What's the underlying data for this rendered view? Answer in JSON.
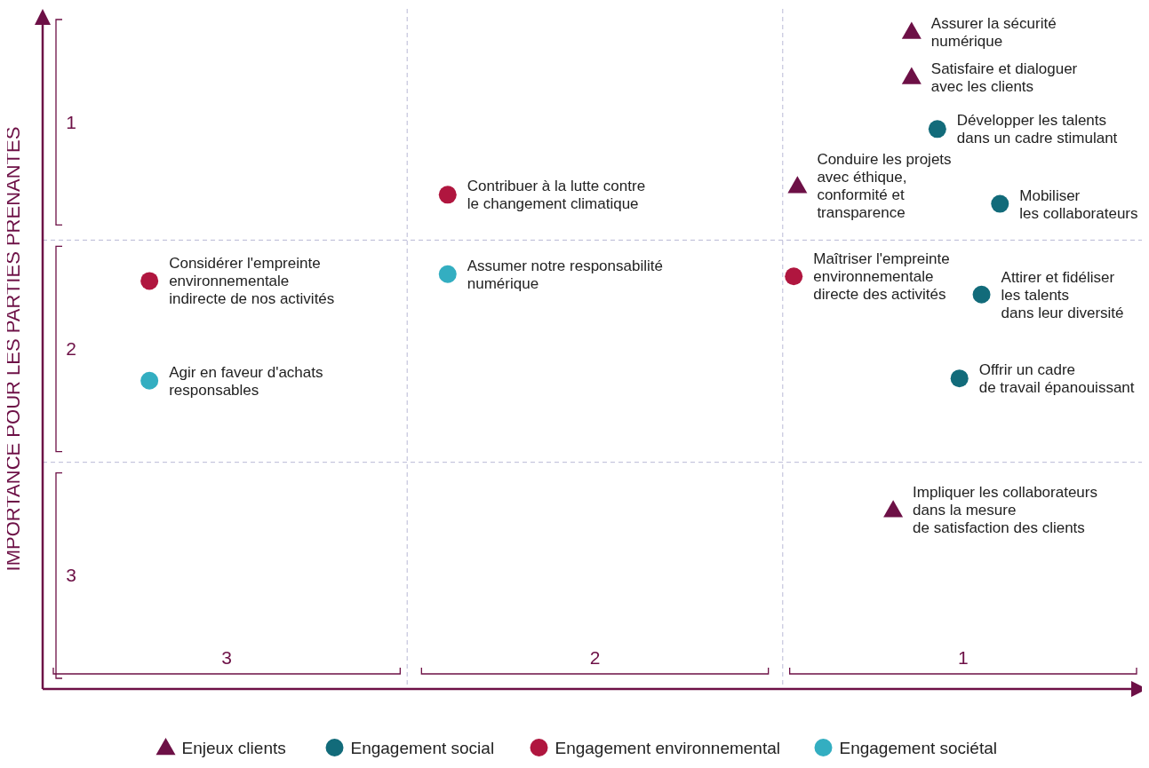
{
  "chart_data": {
    "type": "scatter",
    "ylabel": "IMPORTANCE POUR LES PARTIES PRENANTES",
    "xlim": [
      3.5,
      0.5
    ],
    "ylim": [
      3.5,
      0.5
    ],
    "xticks": [
      3,
      2,
      1
    ],
    "yticks": [
      3,
      2,
      1
    ],
    "grid": false,
    "legend": "bottom",
    "ref_lines": [
      {
        "axis": "x",
        "value": 2.51,
        "color": "#b9b9d6",
        "line_style": "dashed"
      },
      {
        "axis": "x",
        "value": 1.49,
        "color": "#b9b9d6",
        "line_style": "dashed"
      },
      {
        "axis": "y",
        "value": 2.5,
        "color": "#b9b9d6",
        "line_style": "dashed"
      },
      {
        "axis": "y",
        "value": 1.52,
        "color": "#b9b9d6",
        "line_style": "dashed"
      }
    ],
    "series": [
      {
        "name": "Enjeux clients",
        "color": "#6d1046",
        "marker": "triangle",
        "x": [
          1.14,
          1.14,
          1.45,
          1.19
        ],
        "values": [
          0.6,
          0.8,
          1.28,
          2.71
        ]
      },
      {
        "name": "Engagement social",
        "color": "#126b7a",
        "marker": "circle",
        "x": [
          1.07,
          0.9,
          0.95,
          1.01
        ],
        "values": [
          1.03,
          1.36,
          1.76,
          2.13
        ]
      },
      {
        "name": "Engagement environnemental",
        "color": "#b0163f",
        "marker": "circle",
        "x": [
          2.4,
          3.21,
          1.46
        ],
        "values": [
          1.32,
          1.7,
          1.68
        ]
      },
      {
        "name": "Engagement sociétal",
        "color": "#33aec1",
        "marker": "circle",
        "x": [
          2.4,
          3.21
        ],
        "values": [
          1.67,
          2.14
        ]
      }
    ],
    "annotations": [
      {
        "text": "Assurer la sécurité\nnumérique",
        "x": 1.14,
        "y": 0.6
      },
      {
        "text": "Satisfaire et dialoguer\navec les clients",
        "x": 1.14,
        "y": 0.8
      },
      {
        "text": "Conduire les projets\navec éthique,\nconformité et\ntransparence",
        "x": 1.45,
        "y": 1.28
      },
      {
        "text": "Impliquer les collaborateurs\ndans la mesure\nde satisfaction des clients",
        "x": 1.19,
        "y": 2.71
      },
      {
        "text": "Développer les talents\ndans un cadre stimulant",
        "x": 1.07,
        "y": 1.03
      },
      {
        "text": "Mobiliser\nles collaborateurs",
        "x": 0.9,
        "y": 1.36
      },
      {
        "text": "Attirer et fidéliser\nles talents\ndans leur diversité",
        "x": 0.95,
        "y": 1.76
      },
      {
        "text": "Offrir un cadre\nde travail épanouissant",
        "x": 1.01,
        "y": 2.13
      },
      {
        "text": "Contribuer à la lutte contre\nle changement climatique",
        "x": 2.4,
        "y": 1.32
      },
      {
        "text": "Considérer l'empreinte\nenvironnementale\nindirecte de nos activités",
        "x": 3.21,
        "y": 1.7
      },
      {
        "text": "Maîtriser l'empreinte\nenvironnementale\ndirecte des activités",
        "x": 1.46,
        "y": 1.68
      },
      {
        "text": "Assumer notre responsabilité\nnumérique",
        "x": 2.4,
        "y": 1.67
      },
      {
        "text": "Agir en faveur d'achats\nresponsables",
        "x": 3.21,
        "y": 2.14
      }
    ]
  }
}
